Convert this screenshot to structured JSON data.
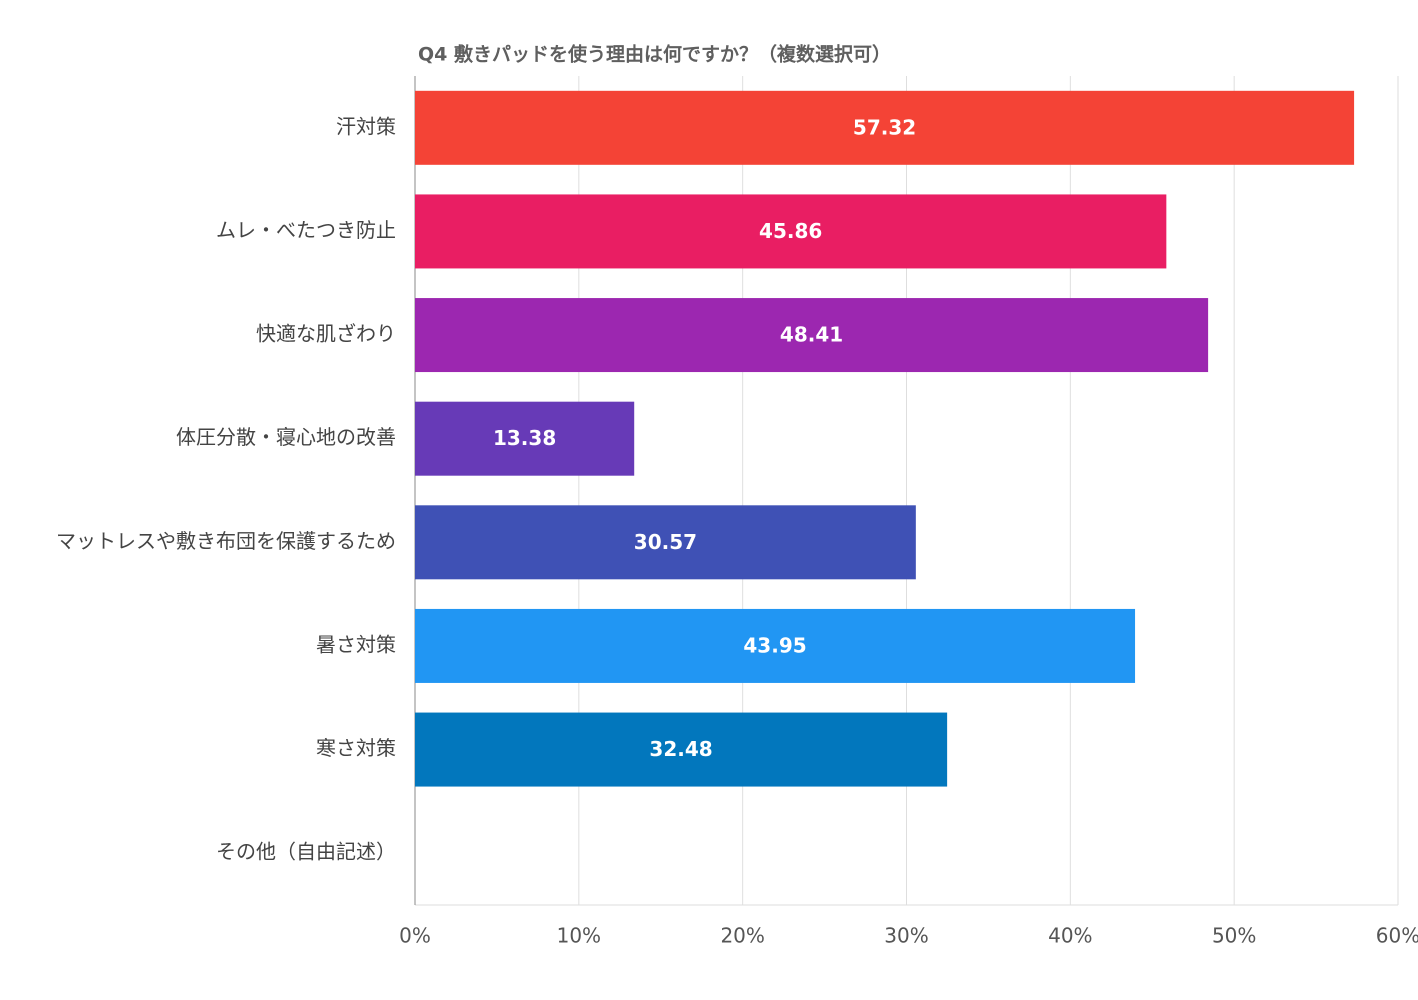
{
  "chart_data": {
    "type": "hbar",
    "title": "Q4 敷きパッドを使う理由は何ですか？（複数選択可）",
    "categories": [
      "汗対策",
      "ムレ・べたつき防止",
      "快適な肌ざわり",
      "体圧分散・寝心地の改善",
      "マットレスや敷き布団を保護するため",
      "暑さ対策",
      "寒さ対策",
      "その他（自由記述）"
    ],
    "values": [
      57.32,
      45.86,
      48.41,
      13.38,
      30.57,
      43.95,
      32.48,
      null
    ],
    "colors": [
      "#f44336",
      "#e91e63",
      "#9c27b0",
      "#673ab7",
      "#3f51b5",
      "#2196f3",
      "#0277bd",
      "#00acc1"
    ],
    "xlim": [
      0,
      60
    ],
    "xticks": [
      {
        "value": 0,
        "label": "0%"
      },
      {
        "value": 10,
        "label": "10%"
      },
      {
        "value": 20,
        "label": "20%"
      },
      {
        "value": 30,
        "label": "30%"
      },
      {
        "value": 40,
        "label": "40%"
      },
      {
        "value": 50,
        "label": "50%"
      },
      {
        "value": 60,
        "label": "60%"
      }
    ],
    "grid": true
  }
}
